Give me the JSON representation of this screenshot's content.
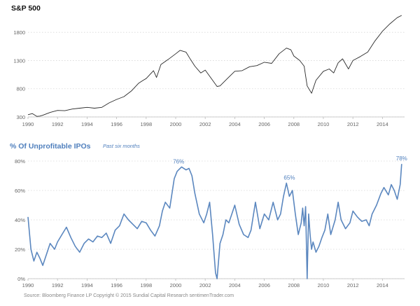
{
  "source_note": "Source:  Bloomberg Finance LP   Copyright © 2015 Sundial Capital Research  sentimenTrader.com",
  "colors": {
    "sp500_line": "#2a2a2a",
    "ipo_line": "#5b87bf",
    "ipo_title": "#4f7fbd",
    "grid": "#d6d6d6",
    "tick_text": "#666666",
    "annotation": "#4f7fbd"
  },
  "chart_data": [
    {
      "type": "line",
      "title": "S&P 500",
      "subtitle": "",
      "xlabel": "",
      "ylabel": "",
      "grid": true,
      "legend": "none",
      "xlim": [
        1990,
        2015.5
      ],
      "ylim": [
        300,
        2100
      ],
      "x_ticks": [
        "1990",
        "1992",
        "1994",
        "1996",
        "1998",
        "2000",
        "2002",
        "2004",
        "2006",
        "2008",
        "2010",
        "2012",
        "2014"
      ],
      "y_ticks": [
        "300",
        "800",
        "1300",
        "1800"
      ],
      "series": [
        {
          "name": "",
          "x": [
            1990.0,
            1990.3,
            1990.6,
            1990.8,
            1991.0,
            1991.5,
            1992.0,
            1992.5,
            1993.0,
            1993.5,
            1994.0,
            1994.5,
            1995.0,
            1995.5,
            1996.0,
            1996.5,
            1997.0,
            1997.5,
            1997.8,
            1998.0,
            1998.5,
            1998.7,
            1999.0,
            1999.5,
            2000.0,
            2000.3,
            2000.7,
            2001.0,
            2001.3,
            2001.7,
            2002.0,
            2002.5,
            2002.8,
            2003.0,
            2003.5,
            2004.0,
            2004.5,
            2005.0,
            2005.5,
            2006.0,
            2006.5,
            2007.0,
            2007.5,
            2007.8,
            2008.0,
            2008.4,
            2008.7,
            2008.9,
            2009.2,
            2009.5,
            2010.0,
            2010.4,
            2010.7,
            2011.0,
            2011.3,
            2011.7,
            2012.0,
            2012.5,
            2013.0,
            2013.5,
            2014.0,
            2014.5,
            2015.0,
            2015.3
          ],
          "values": [
            340,
            360,
            310,
            315,
            330,
            380,
            415,
            410,
            440,
            455,
            470,
            455,
            470,
            550,
            610,
            660,
            760,
            900,
            950,
            980,
            1120,
            1000,
            1230,
            1320,
            1420,
            1480,
            1450,
            1320,
            1200,
            1080,
            1130,
            950,
            840,
            850,
            980,
            1110,
            1120,
            1190,
            1210,
            1270,
            1250,
            1420,
            1520,
            1490,
            1380,
            1300,
            1200,
            850,
            720,
            950,
            1110,
            1150,
            1080,
            1260,
            1330,
            1150,
            1300,
            1370,
            1450,
            1650,
            1820,
            1950,
            2060,
            2100
          ]
        }
      ]
    },
    {
      "type": "line",
      "title": "% Of Unprofitable IPOs",
      "subtitle": "Past six months",
      "xlabel": "",
      "ylabel": "",
      "grid": true,
      "legend": "none",
      "xlim": [
        1990,
        2015.5
      ],
      "ylim": [
        0,
        80
      ],
      "x_ticks": [
        "1990",
        "1992",
        "1994",
        "1996",
        "1998",
        "2000",
        "2002",
        "2004",
        "2006",
        "2008",
        "2010",
        "2012",
        "2014"
      ],
      "y_ticks": [
        "0%",
        "20%",
        "40%",
        "60%",
        "80%"
      ],
      "annotations": [
        {
          "text": "76%",
          "x": 2000.2,
          "y": 76
        },
        {
          "text": "65%",
          "x": 2007.7,
          "y": 65
        },
        {
          "text": "78%",
          "x": 2015.3,
          "y": 78
        }
      ],
      "series": [
        {
          "name": "",
          "x": [
            1990.0,
            1990.2,
            1990.4,
            1990.6,
            1990.8,
            1991.0,
            1991.3,
            1991.5,
            1991.8,
            1992.0,
            1992.3,
            1992.6,
            1992.9,
            1993.2,
            1993.5,
            1993.8,
            1994.1,
            1994.4,
            1994.7,
            1995.0,
            1995.3,
            1995.6,
            1995.9,
            1996.2,
            1996.5,
            1996.8,
            1997.1,
            1997.4,
            1997.7,
            1998.0,
            1998.3,
            1998.6,
            1998.9,
            1999.1,
            1999.3,
            1999.6,
            1999.9,
            2000.1,
            2000.4,
            2000.7,
            2000.9,
            2001.1,
            2001.3,
            2001.6,
            2001.9,
            2002.1,
            2002.3,
            2002.5,
            2002.7,
            2002.8,
            2003.0,
            2003.2,
            2003.4,
            2003.6,
            2003.8,
            2004.0,
            2004.3,
            2004.6,
            2004.9,
            2005.1,
            2005.4,
            2005.7,
            2006.0,
            2006.3,
            2006.6,
            2006.9,
            2007.1,
            2007.3,
            2007.5,
            2007.7,
            2007.9,
            2008.1,
            2008.3,
            2008.5,
            2008.6,
            2008.7,
            2008.8,
            2008.9,
            2009.0,
            2009.1,
            2009.2,
            2009.3,
            2009.5,
            2009.7,
            2009.9,
            2010.1,
            2010.3,
            2010.5,
            2010.8,
            2011.0,
            2011.2,
            2011.5,
            2011.8,
            2012.0,
            2012.3,
            2012.6,
            2012.9,
            2013.1,
            2013.3,
            2013.6,
            2013.9,
            2014.1,
            2014.4,
            2014.6,
            2014.8,
            2015.0,
            2015.2,
            2015.3
          ],
          "values": [
            42,
            20,
            12,
            18,
            14,
            9,
            18,
            24,
            20,
            25,
            30,
            35,
            28,
            22,
            18,
            24,
            27,
            25,
            29,
            28,
            31,
            24,
            33,
            36,
            44,
            40,
            37,
            34,
            39,
            38,
            33,
            29,
            36,
            46,
            52,
            48,
            68,
            73,
            76,
            74,
            75,
            70,
            58,
            44,
            38,
            44,
            52,
            30,
            4,
            0,
            24,
            30,
            40,
            38,
            44,
            50,
            37,
            30,
            28,
            33,
            52,
            34,
            44,
            40,
            52,
            40,
            44,
            56,
            65,
            56,
            60,
            44,
            30,
            38,
            48,
            36,
            49,
            0,
            44,
            30,
            20,
            25,
            18,
            22,
            28,
            33,
            44,
            30,
            40,
            52,
            40,
            34,
            38,
            46,
            42,
            39,
            40,
            36,
            44,
            50,
            58,
            62,
            57,
            64,
            60,
            54,
            64,
            78
          ]
        }
      ]
    }
  ]
}
